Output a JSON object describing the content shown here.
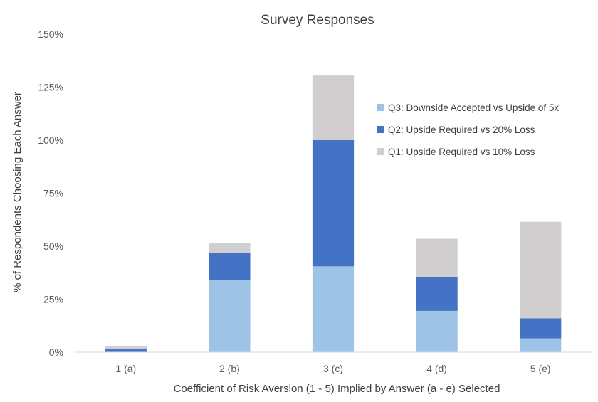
{
  "chart_data": {
    "type": "bar",
    "stacked": true,
    "title": "Survey Responses",
    "xlabel": "Coefficient of Risk Aversion (1 - 5) Implied by Answer (a - e) Selected",
    "ylabel": "% of Respondents Choosing Each Answer",
    "categories": [
      "1 (a)",
      "2 (b)",
      "3 (c)",
      "4 (d)",
      "5 (e)"
    ],
    "ylim": [
      0,
      150
    ],
    "yticks": [
      0,
      25,
      50,
      75,
      100,
      125,
      150
    ],
    "ytick_labels": [
      "0%",
      "25%",
      "50%",
      "75%",
      "100%",
      "125%",
      "150%"
    ],
    "grid": false,
    "legend_position": "top-right",
    "series": [
      {
        "name": "Q3: Downside Accepted vs Upside of 5x",
        "color": "#9DC3E6",
        "values": [
          0,
          34,
          40.5,
          19.5,
          6.5
        ]
      },
      {
        "name": "Q2: Upside Required vs 20% Loss",
        "color": "#4472C4",
        "values": [
          1.5,
          13,
          59.5,
          16,
          9.5
        ]
      },
      {
        "name": "Q1: Upside Required vs 10% Loss",
        "color": "#D0CECE",
        "values": [
          1.5,
          4.5,
          30.5,
          18,
          45.5
        ]
      }
    ]
  }
}
